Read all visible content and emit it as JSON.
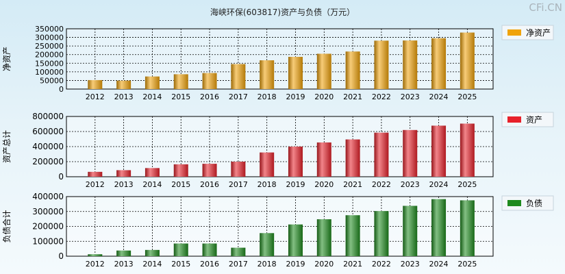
{
  "title": "海峡环保(603817)资产与负债（万元）",
  "watermark": "CFi.CN",
  "chart_data": [
    {
      "type": "bar",
      "name": "net-assets",
      "ylabel": "净资产",
      "legend": "净资产",
      "color": "#f0a30a",
      "categories": [
        "2012",
        "2013",
        "2014",
        "2015",
        "2016",
        "2017",
        "2018",
        "2019",
        "2020",
        "2021",
        "2022",
        "2023",
        "2024",
        "2025"
      ],
      "values": [
        52000,
        49000,
        73000,
        86000,
        93000,
        145000,
        167000,
        187000,
        205000,
        218000,
        281000,
        282000,
        295000,
        328000
      ],
      "ylim": [
        0,
        350000
      ],
      "yticks": [
        "0",
        "50000",
        "100000",
        "150000",
        "200000",
        "250000",
        "300000",
        "350000"
      ],
      "grid": true,
      "legend_position": "right"
    },
    {
      "type": "bar",
      "name": "total-assets",
      "ylabel": "资产总计",
      "legend": "资产",
      "color": "#e8212a",
      "categories": [
        "2012",
        "2013",
        "2014",
        "2015",
        "2016",
        "2017",
        "2018",
        "2019",
        "2020",
        "2021",
        "2022",
        "2023",
        "2024",
        "2025"
      ],
      "values": [
        65000,
        87000,
        115000,
        165000,
        172000,
        200000,
        322000,
        400000,
        455000,
        495000,
        585000,
        620000,
        678000,
        705000
      ],
      "ylim": [
        0,
        800000
      ],
      "yticks": [
        "0",
        "200000",
        "400000",
        "600000",
        "800000"
      ],
      "grid": true,
      "legend_position": "right"
    },
    {
      "type": "bar",
      "name": "total-liabilities",
      "ylabel": "负债合计",
      "legend": "负债",
      "color": "#1e8a1e",
      "categories": [
        "2012",
        "2013",
        "2014",
        "2015",
        "2016",
        "2017",
        "2018",
        "2019",
        "2020",
        "2021",
        "2022",
        "2023",
        "2024",
        "2025"
      ],
      "values": [
        13000,
        38000,
        42000,
        85000,
        85000,
        57000,
        155000,
        213000,
        248000,
        275000,
        303000,
        338000,
        383000,
        375000
      ],
      "ylim": [
        0,
        400000
      ],
      "yticks": [
        "0",
        "100000",
        "200000",
        "300000",
        "400000"
      ],
      "grid": true,
      "legend_position": "right"
    }
  ]
}
